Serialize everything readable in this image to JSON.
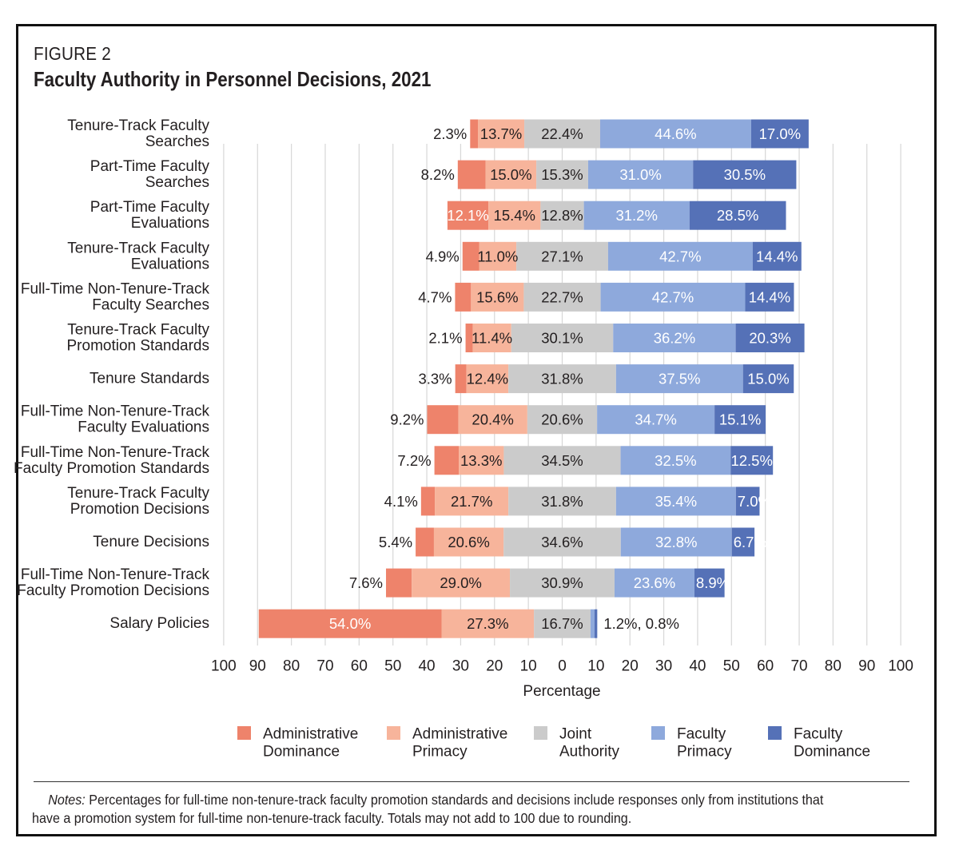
{
  "figure_label": "FIGURE 2",
  "title": "Faculty Authority in Personnel Decisions, 2021",
  "notes": {
    "lead": "Notes:",
    "text": "Percentages for full-time non-tenure-track faculty promotion standards and decisions include responses only from institutions that have a promotion system for full-time non-tenure-track faculty. Totals may not add to 100 due to rounding."
  },
  "colors": {
    "admin_dominance": "#ee836b",
    "admin_primacy": "#f7b49b",
    "joint_authority": "#cbcbcb",
    "faculty_primacy": "#8ea9dc",
    "faculty_dominance": "#5571b7"
  },
  "chart_data": {
    "type": "bar",
    "orientation": "horizontal-diverging-stacked",
    "title": "Faculty Authority in Personnel Decisions, 2021",
    "xlabel": "Percentage",
    "ylabel": "",
    "xlim": [
      -100,
      100
    ],
    "x_ticks": [
      -100,
      -90,
      -80,
      -70,
      -60,
      -50,
      -40,
      -30,
      -20,
      -10,
      0,
      10,
      20,
      30,
      40,
      50,
      60,
      70,
      80,
      90,
      100
    ],
    "x_tick_labels": [
      "100",
      "90",
      "80",
      "70",
      "60",
      "50",
      "40",
      "30",
      "20",
      "10",
      "0",
      "10",
      "20",
      "30",
      "40",
      "50",
      "60",
      "70",
      "80",
      "90",
      "100"
    ],
    "grid": true,
    "legend_position": "bottom",
    "categories": [
      [
        "Tenure-Track Faculty",
        "Searches"
      ],
      [
        "Part-Time Faculty",
        "Searches"
      ],
      [
        "Part-Time Faculty",
        "Evaluations"
      ],
      [
        "Tenure-Track Faculty",
        "Evaluations"
      ],
      [
        "Full-Time Non-Tenure-Track",
        "Faculty Searches"
      ],
      [
        "Tenure-Track Faculty",
        "Promotion Standards"
      ],
      [
        "Tenure Standards"
      ],
      [
        "Full-Time Non-Tenure-Track",
        "Faculty Evaluations"
      ],
      [
        "Full-Time Non-Tenure-Track",
        "Faculty Promotion Standards"
      ],
      [
        "Tenure-Track Faculty",
        "Promotion Decisions"
      ],
      [
        "Tenure Decisions"
      ],
      [
        "Full-Time Non-Tenure-Track",
        "Faculty Promotion Decisions"
      ],
      [
        "Salary Policies"
      ]
    ],
    "series": [
      {
        "name": [
          "Administrative",
          "Dominance"
        ],
        "values": [
          2.3,
          8.2,
          12.1,
          4.9,
          4.7,
          2.1,
          3.3,
          9.2,
          7.2,
          4.1,
          5.4,
          7.6,
          54.0
        ]
      },
      {
        "name": [
          "Administrative",
          "Primacy"
        ],
        "values": [
          13.7,
          15.0,
          15.4,
          11.0,
          15.6,
          11.4,
          12.4,
          20.4,
          13.3,
          21.7,
          20.6,
          29.0,
          27.3
        ]
      },
      {
        "name": [
          "Joint",
          "Authority"
        ],
        "values": [
          22.4,
          15.3,
          12.8,
          27.1,
          22.7,
          30.1,
          31.8,
          20.6,
          34.5,
          31.8,
          34.6,
          30.9,
          16.7
        ]
      },
      {
        "name": [
          "Faculty",
          "Primacy"
        ],
        "values": [
          44.6,
          31.0,
          31.2,
          42.7,
          42.7,
          36.2,
          37.5,
          34.7,
          32.5,
          35.4,
          32.8,
          23.6,
          1.2
        ]
      },
      {
        "name": [
          "Faculty",
          "Dominance"
        ],
        "values": [
          17.0,
          30.5,
          28.5,
          14.4,
          14.4,
          20.3,
          15.0,
          15.1,
          12.5,
          7.0,
          6.7,
          8.9,
          0.8
        ]
      }
    ],
    "data_labels": [
      [
        "2.3%",
        "13.7%",
        "22.4%",
        "44.6%",
        "17.0%"
      ],
      [
        "8.2%",
        "15.0%",
        "15.3%",
        "31.0%",
        "30.5%"
      ],
      [
        "12.1%",
        "15.4%",
        "12.8%",
        "31.2%",
        "28.5%"
      ],
      [
        "4.9%",
        "11.0%",
        "27.1%",
        "42.7%",
        "14.4%"
      ],
      [
        "4.7%",
        "15.6%",
        "22.7%",
        "42.7%",
        "14.4%"
      ],
      [
        "2.1%",
        "11.4%",
        "30.1%",
        "36.2%",
        "20.3%"
      ],
      [
        "3.3%",
        "12.4%",
        "31.8%",
        "37.5%",
        "15.0%"
      ],
      [
        "9.2%",
        "20.4%",
        "20.6%",
        "34.7%",
        "15.1%"
      ],
      [
        "7.2%",
        "13.3%",
        "34.5%",
        "32.5%",
        "12.5%"
      ],
      [
        "4.1%",
        "21.7%",
        "31.8%",
        "35.4%",
        "7.0%"
      ],
      [
        "5.4%",
        "20.6%",
        "34.6%",
        "32.8%",
        "6.7%"
      ],
      [
        "7.6%",
        "29.0%",
        "30.9%",
        "23.6%",
        "8.9%"
      ],
      [
        "54.0%",
        "27.3%",
        "16.7%",
        "1.2%, 0.8%",
        ""
      ]
    ]
  }
}
